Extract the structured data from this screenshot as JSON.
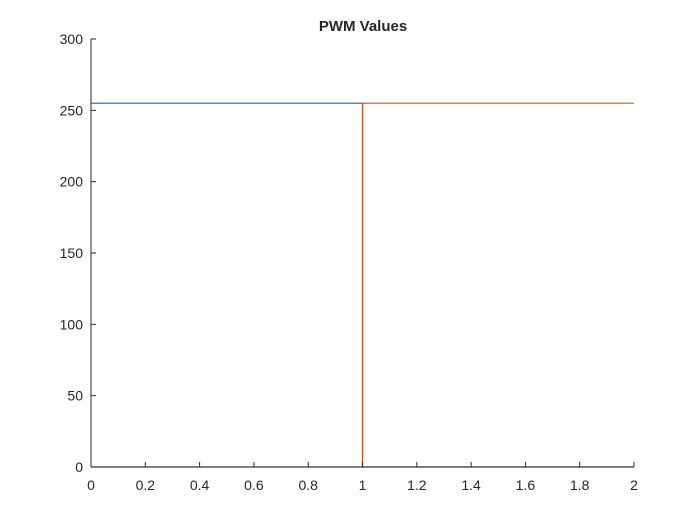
{
  "chart_data": {
    "type": "line",
    "title": "PWM Values",
    "xlabel": "",
    "ylabel": "",
    "xlim": [
      0,
      2
    ],
    "ylim": [
      0,
      300
    ],
    "xticks": [
      0,
      0.2,
      0.4,
      0.6,
      0.8,
      1,
      1.2,
      1.4,
      1.6,
      1.8,
      2
    ],
    "xtick_labels": [
      "0",
      "0.2",
      "0.4",
      "0.6",
      "0.8",
      "1",
      "1.2",
      "1.4",
      "1.6",
      "1.8",
      "2"
    ],
    "yticks": [
      0,
      50,
      100,
      150,
      200,
      250,
      300
    ],
    "ytick_labels": [
      "0",
      "50",
      "100",
      "150",
      "200",
      "250",
      "300"
    ],
    "grid": false,
    "legend": "none",
    "series": [
      {
        "color": "#0072BD",
        "x": [
          0,
          1,
          1,
          2
        ],
        "y": [
          255,
          255,
          0,
          0
        ]
      },
      {
        "color": "#D95319",
        "x": [
          0,
          1,
          1,
          2
        ],
        "y": [
          0,
          0,
          255,
          255
        ]
      }
    ]
  }
}
